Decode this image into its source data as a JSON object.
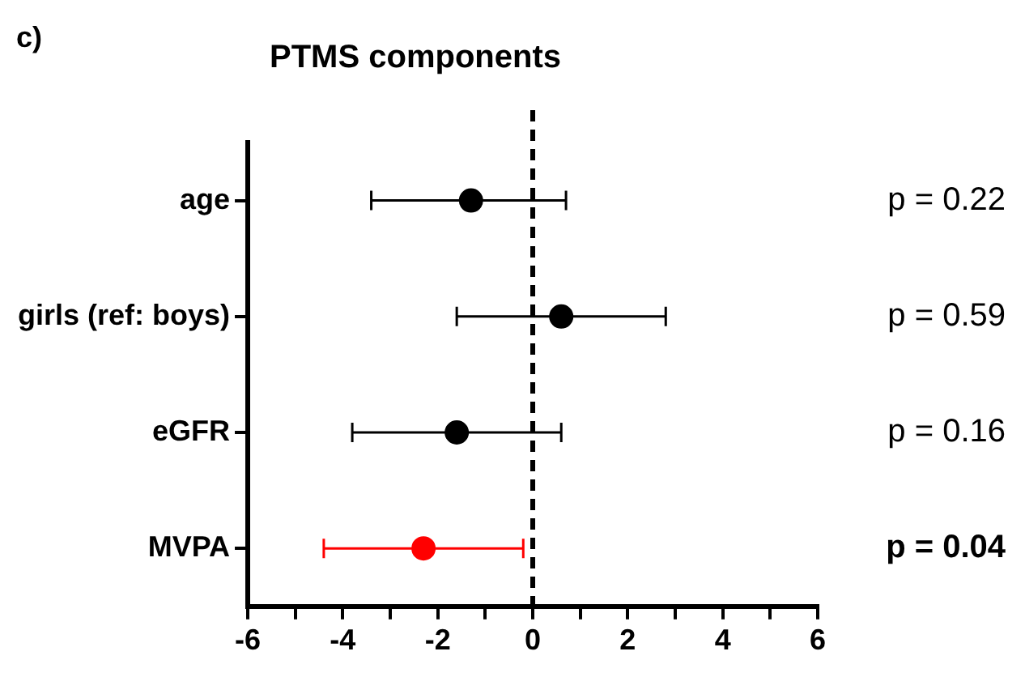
{
  "chart_data": {
    "type": "scatter",
    "orientation": "horizontal",
    "title": "PTMS components",
    "categories": [
      "age",
      "girls (ref: boys)",
      "eGFR",
      "MVPA"
    ],
    "values": [
      -1.3,
      0.6,
      -1.6,
      -2.3
    ],
    "errors": [
      [
        -3.4,
        0.7
      ],
      [
        -1.6,
        2.8
      ],
      [
        -3.8,
        0.6
      ],
      [
        -4.4,
        -0.2
      ]
    ],
    "colors": [
      "#000000",
      "#000000",
      "#000000",
      "#ff0000"
    ],
    "marker": "circle",
    "grid": false,
    "legend": false,
    "xlim": [
      -6,
      6
    ],
    "xticks": [
      -6,
      {
        "value": -5,
        "label": null
      },
      -4,
      {
        "value": -3,
        "label": null
      },
      -2,
      {
        "value": -1,
        "label": null
      },
      0,
      {
        "value": 1,
        "label": null
      },
      2,
      {
        "value": 3,
        "label": null
      },
      4,
      {
        "value": 5,
        "label": null
      },
      6
    ],
    "ref_lines": [
      {
        "axis": "x",
        "value": 0,
        "line_style": "dashed",
        "color": "#000000"
      }
    ],
    "annotations": [
      "c)",
      "p = 0.22",
      "p = 0.59",
      "p = 0.16",
      "p = 0.04"
    ]
  }
}
